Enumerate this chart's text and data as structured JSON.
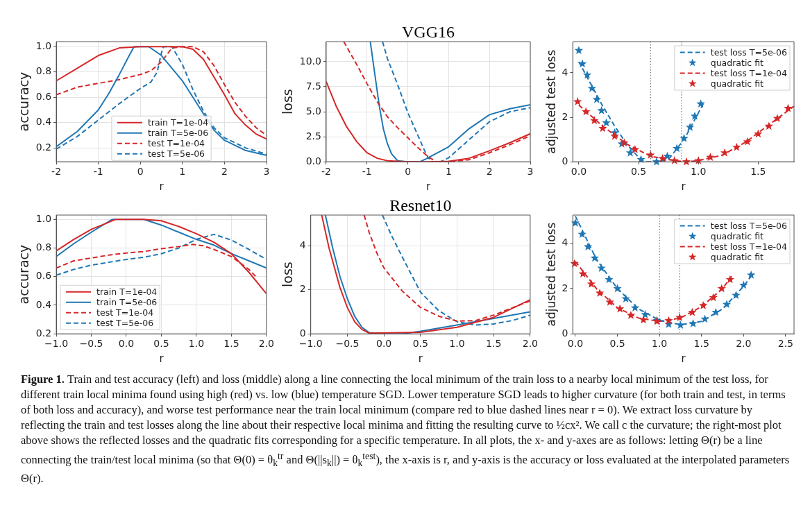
{
  "chart_data": [
    {
      "type": "line",
      "ylabel": "accuracy",
      "xlabel": "r",
      "xlim": [
        -2,
        3
      ],
      "xticks": [
        -2,
        -1,
        0,
        1,
        2,
        3
      ],
      "ylim": [
        0.09,
        1.04
      ],
      "yticks": [
        {
          "value": 0.2,
          "label": "0.2"
        },
        {
          "value": 0.4,
          "label": "0.4"
        },
        {
          "value": 0.6,
          "label": "0.6"
        },
        {
          "value": 0.8,
          "label": "0.8"
        },
        {
          "value": 1,
          "label": "1.0"
        }
      ],
      "grid": true,
      "legend": "bottom",
      "series": [
        {
          "name": "train T=1e-04",
          "color": "#d62728",
          "line_style": "solid",
          "x": [
            -2,
            -1.5,
            -1,
            -0.5,
            0,
            0.5,
            1,
            1.25,
            1.5,
            1.75,
            2,
            2.25,
            2.5,
            2.75,
            3
          ],
          "values": [
            0.73,
            0.83,
            0.93,
            0.99,
            1,
            1,
            1,
            0.98,
            0.9,
            0.76,
            0.62,
            0.47,
            0.38,
            0.31,
            0.27
          ]
        },
        {
          "name": "train T=5e-06",
          "color": "#1f77b4",
          "line_style": "solid",
          "x": [
            -2,
            -1.5,
            -1,
            -0.75,
            -0.5,
            -0.25,
            -0.15,
            0.2,
            0.5,
            0.75,
            1,
            1.25,
            1.5,
            1.75,
            2,
            2.5,
            3
          ],
          "values": [
            0.21,
            0.33,
            0.5,
            0.63,
            0.78,
            0.94,
            1,
            1,
            0.93,
            0.83,
            0.73,
            0.6,
            0.47,
            0.34,
            0.26,
            0.18,
            0.14
          ]
        },
        {
          "name": "test T=1e-04",
          "color": "#d62728",
          "line_style": "dashed",
          "x": [
            -2,
            -1.5,
            -1,
            -0.5,
            0,
            0.25,
            0.5,
            0.75,
            1,
            1.25,
            1.5,
            1.75,
            2,
            2.25,
            2.5,
            2.75,
            3
          ],
          "values": [
            0.62,
            0.68,
            0.71,
            0.74,
            0.78,
            0.81,
            0.88,
            0.99,
            1,
            1,
            0.96,
            0.85,
            0.7,
            0.56,
            0.45,
            0.36,
            0.3
          ]
        },
        {
          "name": "test T=5e-06",
          "color": "#1f77b4",
          "line_style": "dashed",
          "x": [
            -2,
            -1.5,
            -1,
            -0.5,
            0,
            0.25,
            0.4,
            0.5,
            0.55,
            0.75,
            1,
            1.25,
            1.5,
            1.75,
            2,
            2.5,
            3
          ],
          "values": [
            0.19,
            0.29,
            0.42,
            0.55,
            0.67,
            0.72,
            0.8,
            0.95,
            1,
            1,
            0.86,
            0.66,
            0.49,
            0.36,
            0.28,
            0.2,
            0.15
          ]
        }
      ]
    },
    {
      "type": "line",
      "title": "VGG16",
      "ylabel": "loss",
      "xlabel": "r",
      "xlim": [
        -2,
        3
      ],
      "xticks": [
        -2,
        -1,
        0,
        1,
        2,
        3
      ],
      "ylim": [
        0,
        12
      ],
      "yticks": [
        {
          "value": 0,
          "label": "0.0"
        },
        2.5,
        {
          "value": 5,
          "label": "5.0"
        },
        7.5,
        {
          "value": 10,
          "label": "10.0"
        }
      ],
      "grid": true,
      "series": [
        {
          "color": "#d62728",
          "line_style": "solid",
          "x": [
            -2,
            -1.75,
            -1.5,
            -1.25,
            -1,
            -0.75,
            -0.5,
            0,
            0.5,
            1,
            1.5,
            2,
            2.5,
            3
          ],
          "values": [
            8,
            5.5,
            3.5,
            2,
            0.9,
            0.35,
            0.1,
            0,
            0,
            0.05,
            0.35,
            1.1,
            1.9,
            2.8
          ]
        },
        {
          "color": "#d62728",
          "line_style": "dashed",
          "x": [
            -1.57,
            -1.25,
            -1,
            -0.75,
            -0.5,
            -0.25,
            0,
            0.25,
            0.5,
            0.7,
            1,
            1.5,
            2,
            2.5,
            3
          ],
          "values": [
            12,
            9.7,
            7.8,
            6,
            4.5,
            3.4,
            2.4,
            1.4,
            0.5,
            0,
            0,
            0.2,
            0.9,
            1.7,
            2.6
          ]
        },
        {
          "color": "#1f77b4",
          "line_style": "solid",
          "x": [
            -0.92,
            -0.8,
            -0.7,
            -0.6,
            -0.5,
            -0.4,
            -0.25,
            0,
            0.3,
            0.5,
            1,
            1.5,
            2,
            2.5,
            3
          ],
          "values": [
            12,
            8.5,
            5.6,
            3.3,
            1.8,
            0.8,
            0.1,
            0,
            0,
            0.4,
            1.5,
            3.3,
            4.7,
            5.3,
            5.7
          ]
        },
        {
          "color": "#1f77b4",
          "line_style": "dashed",
          "x": [
            -0.62,
            -0.5,
            -0.25,
            0,
            0.25,
            0.4,
            0.5,
            0.6,
            0.8,
            1,
            1.5,
            2,
            2.5,
            3
          ],
          "values": [
            12,
            10.3,
            7.7,
            4.9,
            2.6,
            1.2,
            0.4,
            0,
            0,
            0.4,
            2.2,
            4,
            5,
            5.4
          ]
        }
      ]
    },
    {
      "type": "line",
      "ylabel": "adjusted test loss",
      "xlabel": "r",
      "xlim": [
        -0.05,
        1.8
      ],
      "xticks": [
        {
          "value": 0,
          "label": "0.0"
        },
        0.5,
        {
          "value": 1,
          "label": "1.0"
        },
        1.5
      ],
      "ylim": [
        0,
        5.4
      ],
      "yticks": [
        0,
        2,
        4
      ],
      "legend": "top right",
      "ref_lines": [
        {
          "axis": "x",
          "value": 0.6,
          "color": "#555555",
          "line_style": "dotted"
        },
        {
          "axis": "x",
          "value": 0.86,
          "color": "#555555",
          "line_style": "dotted"
        }
      ],
      "series": [
        {
          "name": "test loss T=5e-06",
          "color": "#1f77b4",
          "line_style": "dashed",
          "x": [
            0,
            0.1,
            0.2,
            0.3,
            0.4,
            0.5,
            0.55,
            0.65,
            0.75,
            0.85,
            0.9,
            1,
            1.04
          ],
          "values": [
            4.5,
            3.5,
            2.5,
            1.6,
            0.8,
            0.2,
            0,
            0,
            0.1,
            0.8,
            1.2,
            2.2,
            2.6
          ]
        },
        {
          "name": "quadratic fit",
          "type": "scatter",
          "marker": "star",
          "color": "#1f77b4",
          "x": [
            0,
            0.03,
            0.07,
            0.11,
            0.15,
            0.19,
            0.23,
            0.3,
            0.36,
            0.43,
            0.52,
            0.65,
            0.74,
            0.82,
            0.88,
            0.93,
            0.97,
            1.02
          ],
          "values": [
            5,
            4.4,
            3.9,
            3.3,
            2.8,
            2.3,
            1.75,
            1.3,
            0.8,
            0.4,
            0.1,
            0,
            0.25,
            0.6,
            1.05,
            1.55,
            2.05,
            2.6
          ]
        },
        {
          "name": "test loss T=1e-04",
          "color": "#d62728",
          "line_style": "dashed",
          "x": [
            0,
            0.2,
            0.4,
            0.6,
            0.8,
            0.9,
            1,
            1.2,
            1.4,
            1.6,
            1.8
          ],
          "values": [
            2.55,
            1.6,
            0.8,
            0.25,
            0.05,
            0,
            0.05,
            0.3,
            0.9,
            1.7,
            2.5
          ]
        },
        {
          "name": "quadratic fit",
          "type": "scatter",
          "marker": "star",
          "color": "#d62728",
          "x": [
            -0.01,
            0.06,
            0.13,
            0.2,
            0.3,
            0.38,
            0.47,
            0.6,
            0.7,
            0.8,
            0.9,
            1,
            1.1,
            1.22,
            1.32,
            1.41,
            1.5,
            1.59,
            1.66,
            1.75
          ],
          "values": [
            2.7,
            2.25,
            1.85,
            1.5,
            1.15,
            0.85,
            0.55,
            0.3,
            0.15,
            0.05,
            0,
            0.05,
            0.2,
            0.4,
            0.65,
            0.9,
            1.25,
            1.6,
            1.95,
            2.4
          ]
        }
      ]
    },
    {
      "type": "line",
      "ylabel": "accuracy",
      "xlabel": "r",
      "xlim": [
        -1,
        2
      ],
      "xticks": [
        {
          "value": -1,
          "label": "−1.0"
        },
        {
          "value": -0.5,
          "label": "−0.5"
        },
        {
          "value": 0,
          "label": "0.0"
        },
        0.5,
        {
          "value": 1,
          "label": "1.0"
        },
        1.5,
        {
          "value": 2,
          "label": "2.0"
        }
      ],
      "ylim": [
        0.2,
        1.03
      ],
      "yticks": [
        0.2,
        0.4,
        0.6,
        0.8,
        {
          "value": 1,
          "label": "1.0"
        }
      ],
      "grid": true,
      "legend": "bottom left",
      "series": [
        {
          "name": "train T=1e-04",
          "color": "#d62728",
          "line_style": "solid",
          "x": [
            -1,
            -0.75,
            -0.5,
            -0.25,
            -0.15,
            0.25,
            0.5,
            0.75,
            1,
            1.25,
            1.5,
            1.75,
            2
          ],
          "values": [
            0.78,
            0.86,
            0.93,
            0.98,
            1,
            1,
            0.99,
            0.95,
            0.9,
            0.84,
            0.76,
            0.63,
            0.48
          ]
        },
        {
          "name": "train T=5e-06",
          "color": "#1f77b4",
          "line_style": "solid",
          "x": [
            -1,
            -0.75,
            -0.5,
            -0.2,
            0.25,
            0.5,
            0.75,
            1,
            1.25,
            1.5,
            1.75,
            2
          ],
          "values": [
            0.74,
            0.83,
            0.91,
            1,
            1,
            0.96,
            0.91,
            0.86,
            0.82,
            0.76,
            0.71,
            0.66
          ]
        },
        {
          "name": "test T=1e-04",
          "color": "#d62728",
          "line_style": "dashed",
          "x": [
            -1,
            -0.75,
            -0.5,
            -0.25,
            0,
            0.25,
            0.5,
            0.75,
            0.95,
            1.1,
            1.25,
            1.5,
            1.75,
            1.85
          ],
          "values": [
            0.66,
            0.71,
            0.73,
            0.75,
            0.765,
            0.775,
            0.795,
            0.81,
            0.825,
            0.815,
            0.79,
            0.74,
            0.65,
            0.6
          ]
        },
        {
          "name": "test T=5e-06",
          "color": "#1f77b4",
          "line_style": "dashed",
          "x": [
            -1,
            -0.75,
            -0.5,
            -0.25,
            0,
            0.25,
            0.5,
            0.75,
            1,
            1.25,
            1.5,
            1.75,
            2
          ],
          "values": [
            0.61,
            0.65,
            0.68,
            0.7,
            0.72,
            0.735,
            0.76,
            0.8,
            0.86,
            0.895,
            0.855,
            0.79,
            0.72
          ]
        }
      ]
    },
    {
      "type": "line",
      "title": "Resnet10",
      "ylabel": "loss",
      "xlabel": "r",
      "xlim": [
        -1,
        2
      ],
      "xticks": [
        {
          "value": -1,
          "label": "−1.0"
        },
        {
          "value": -0.5,
          "label": "−0.5"
        },
        {
          "value": 0,
          "label": "0.0"
        },
        0.5,
        {
          "value": 1,
          "label": "1.0"
        },
        1.5,
        {
          "value": 2,
          "label": "2.0"
        }
      ],
      "ylim": [
        0,
        5.4
      ],
      "yticks": [
        0,
        2,
        4
      ],
      "grid": true,
      "series": [
        {
          "color": "#d62728",
          "line_style": "solid",
          "x": [
            -0.85,
            -0.75,
            -0.6,
            -0.5,
            -0.4,
            -0.3,
            -0.2,
            0.5,
            1,
            1.5,
            2
          ],
          "values": [
            5.4,
            3.9,
            2.1,
            1.2,
            0.55,
            0.2,
            0.03,
            0.07,
            0.3,
            0.75,
            1.55
          ]
        },
        {
          "color": "#1f77b4",
          "line_style": "solid",
          "x": [
            -0.8,
            -0.7,
            -0.6,
            -0.5,
            -0.4,
            -0.3,
            -0.2,
            0,
            0.25,
            0.5,
            1,
            1.5,
            2
          ],
          "values": [
            5.4,
            3.9,
            2.6,
            1.6,
            0.8,
            0.3,
            0.05,
            0,
            0,
            0.12,
            0.4,
            0.7,
            1
          ]
        },
        {
          "color": "#d62728",
          "line_style": "dashed",
          "x": [
            -0.27,
            -0.2,
            -0.1,
            0,
            0.25,
            0.5,
            0.75,
            1,
            1.25,
            1.5,
            2
          ],
          "values": [
            5.4,
            4.6,
            3.7,
            3,
            1.95,
            1.2,
            0.8,
            0.58,
            0.6,
            0.85,
            1.5
          ]
        },
        {
          "color": "#1f77b4",
          "line_style": "dashed",
          "x": [
            -0.02,
            0.1,
            0.25,
            0.5,
            0.75,
            1,
            1.25,
            1.5,
            1.75,
            2
          ],
          "values": [
            5.4,
            4.5,
            3.5,
            1.9,
            1.05,
            0.55,
            0.4,
            0.45,
            0.6,
            0.85
          ]
        }
      ]
    },
    {
      "type": "line",
      "ylabel": "adjusted test loss",
      "xlabel": "r",
      "xlim": [
        -0.03,
        2.6
      ],
      "xticks": [
        {
          "value": 0,
          "label": "0.0"
        },
        0.5,
        {
          "value": 1,
          "label": "1.0"
        },
        1.5,
        {
          "value": 2,
          "label": "2.0"
        },
        2.5
      ],
      "ylim": [
        0,
        5.25
      ],
      "yticks": [
        0,
        2,
        4
      ],
      "legend": "top right",
      "ref_lines": [
        {
          "axis": "x",
          "value": 1,
          "color": "#555555",
          "line_style": "dotted"
        },
        {
          "axis": "x",
          "value": 1.24,
          "color": "#555555",
          "line_style": "dotted"
        }
      ],
      "annotations": [
        "Figure 1.",
        "Train and test accuracy (left) and loss (middle) along a line connecting the local minimum of the train loss to a nearby local minimum of the test loss, for different train local minima found using high (red) vs. low (blue) temperature SGD. Lower temperature SGD leads to higher curvature (for both train and test, in terms of both loss and accuracy), and worse test performance near the train local minimum (compare red to blue dashed lines near r = 0). We extract loss curvature by reflecting the train and test losses along the line about their respective local minima and fitting the resulting curve to ½cx². We call c the curvature; the right-most plot above shows the reflected losses and the quadratic fits corresponding for a specific temperature. In all plots, the x- and y-axes are as follows: letting Θ(r) be a line connecting the train/test local minima (so that Θ(0) = θ$_{k}$$^{tr}$ and Θ(||s$_{k}$||) = θ$_{k}$$^{test}$), the x-axis is r, and y-axis is the accuracy or loss evaluated at the interpolated parameters Θ(r)."
      ],
      "series": [
        {
          "name": "test loss T=5e-06",
          "color": "#1f77b4",
          "line_style": "dashed",
          "x": [
            0,
            0.25,
            0.5,
            0.75,
            1,
            1.25,
            1.5,
            1.75,
            2,
            2.1
          ],
          "values": [
            5.2,
            3.3,
            2,
            1.1,
            0.6,
            0.4,
            0.55,
            1.1,
            2.1,
            2.6
          ]
        },
        {
          "name": "quadratic fit",
          "type": "scatter",
          "marker": "star",
          "color": "#1f77b4",
          "x": [
            0,
            0.08,
            0.15,
            0.23,
            0.31,
            0.4,
            0.5,
            0.6,
            0.71,
            0.83,
            0.97,
            1.11,
            1.25,
            1.4,
            1.54,
            1.67,
            1.8,
            1.91,
            2,
            2.09
          ],
          "values": [
            4.9,
            4.4,
            3.85,
            3.35,
            2.9,
            2.4,
            2,
            1.55,
            1.15,
            0.85,
            0.6,
            0.42,
            0.38,
            0.45,
            0.65,
            0.95,
            1.3,
            1.7,
            2.15,
            2.6
          ]
        },
        {
          "name": "test loss T=1e-04",
          "color": "#d62728",
          "line_style": "dashed",
          "x": [
            0,
            0.25,
            0.5,
            0.75,
            1,
            1.25,
            1.5,
            1.75,
            1.87
          ],
          "values": [
            3.2,
            2,
            1.15,
            0.7,
            0.55,
            0.7,
            1.2,
            2,
            2.6
          ]
        },
        {
          "name": "quadratic fit",
          "type": "scatter",
          "marker": "star",
          "color": "#d62728",
          "x": [
            -0.01,
            0.09,
            0.19,
            0.29,
            0.41,
            0.53,
            0.66,
            0.81,
            0.97,
            1.11,
            1.24,
            1.39,
            1.52,
            1.64,
            1.74,
            1.84
          ],
          "values": [
            3.1,
            2.65,
            2.2,
            1.8,
            1.4,
            1.1,
            0.82,
            0.62,
            0.55,
            0.58,
            0.72,
            0.95,
            1.25,
            1.6,
            2,
            2.4
          ]
        }
      ]
    }
  ]
}
